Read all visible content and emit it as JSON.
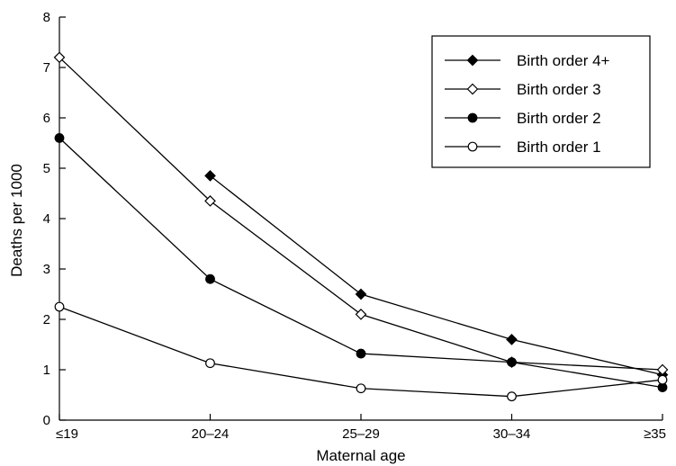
{
  "chart_data": {
    "type": "line",
    "xlabel": "Maternal age",
    "ylabel": "Deaths per 1000",
    "categories": [
      "≤19",
      "20–24",
      "25–29",
      "30–34",
      "≥35"
    ],
    "ylim": [
      0,
      8
    ],
    "yticks": [
      "0",
      "1",
      "2",
      "3",
      "4",
      "5",
      "6",
      "7",
      "8"
    ],
    "grid": false,
    "legend_position": "top-right",
    "series": [
      {
        "name": "Birth order 4+",
        "marker": "filled-diamond",
        "values": [
          null,
          4.85,
          2.5,
          1.6,
          0.9
        ]
      },
      {
        "name": "Birth order 3",
        "marker": "open-diamond",
        "values": [
          7.2,
          4.35,
          2.1,
          1.15,
          1.0
        ]
      },
      {
        "name": "Birth order 2",
        "marker": "filled-circle",
        "values": [
          5.6,
          2.8,
          1.32,
          1.15,
          0.65
        ]
      },
      {
        "name": "Birth order 1",
        "marker": "open-circle",
        "values": [
          2.25,
          1.13,
          0.63,
          0.47,
          0.8
        ]
      }
    ]
  }
}
